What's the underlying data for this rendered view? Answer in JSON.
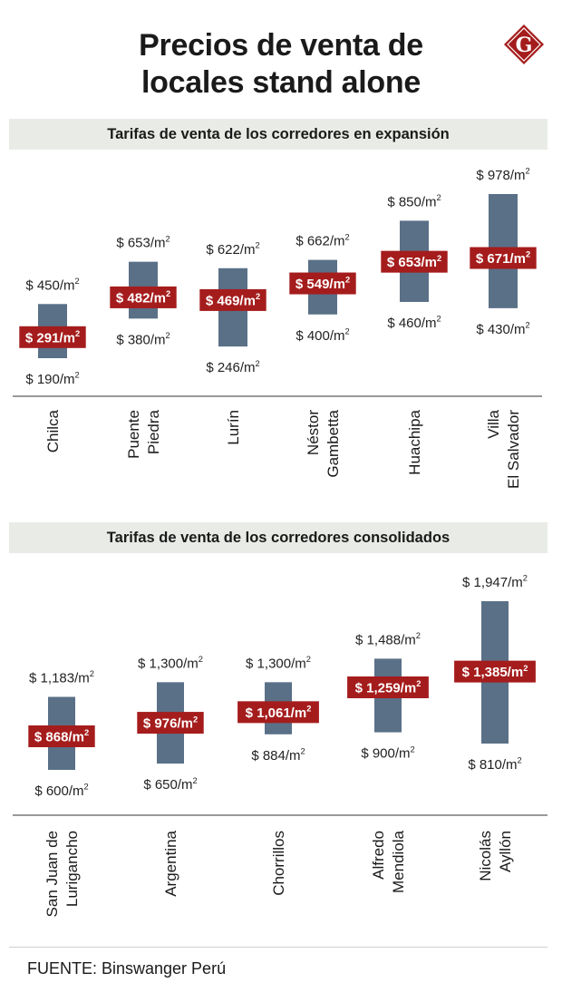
{
  "title_line1": "Precios de venta de",
  "title_line2": "locales stand alone",
  "logo_letter": "G",
  "source": "FUENTE: Binswanger Perú",
  "colors": {
    "bar": "#5a7087",
    "median": "#a51c1c",
    "header_bg": "#e9ece6"
  },
  "chart_data": [
    {
      "type": "range-bar",
      "title": "Tarifas de venta de los corredores en expansión",
      "unit": "$ /m²",
      "ylim": [
        190,
        978
      ],
      "categories": [
        [
          "Chilca"
        ],
        [
          "Puente",
          "Piedra"
        ],
        [
          "Lurín"
        ],
        [
          "Néstor",
          "Gambetta"
        ],
        [
          "Huachipa"
        ],
        [
          "Villa",
          "El Salvador"
        ]
      ],
      "min": [
        190,
        380,
        246,
        400,
        460,
        430
      ],
      "max": [
        450,
        653,
        622,
        662,
        850,
        978
      ],
      "median": [
        291,
        482,
        469,
        549,
        653,
        671
      ],
      "min_labels": [
        "$ 190/m",
        "$ 380/m",
        "$ 246/m",
        "$ 400/m",
        "$ 460/m",
        "$ 430/m"
      ],
      "max_labels": [
        "$ 450/m",
        "$ 653/m",
        "$ 622/m",
        "$ 662/m",
        "$ 850/m",
        "$ 978/m"
      ],
      "median_labels": [
        "$ 291/m",
        "$ 482/m",
        "$ 469/m",
        "$ 549/m",
        "$ 653/m",
        "$ 671/m"
      ],
      "superscript": "2"
    },
    {
      "type": "range-bar",
      "title": "Tarifas de venta de los corredores consolidados",
      "unit": "$ /m²",
      "ylim": [
        600,
        1947
      ],
      "categories": [
        [
          "San Juan de",
          "Lurigancho"
        ],
        [
          "Argentina"
        ],
        [
          "Chorrillos"
        ],
        [
          "Alfredo",
          "Mendiola"
        ],
        [
          "Nicolás",
          "Ayllón"
        ]
      ],
      "min": [
        600,
        650,
        884,
        900,
        810
      ],
      "max": [
        1183,
        1300,
        1300,
        1488,
        1947
      ],
      "median": [
        868,
        976,
        1061,
        1259,
        1385
      ],
      "min_labels": [
        "$ 600/m",
        "$ 650/m",
        "$ 884/m",
        "$ 900/m",
        "$ 810/m"
      ],
      "max_labels": [
        "$ 1,183/m",
        "$ 1,300/m",
        "$ 1,300/m",
        "$ 1,488/m",
        "$ 1,947/m"
      ],
      "median_labels": [
        "$ 868/m",
        "$ 976/m",
        "$ 1,061/m",
        "$ 1,259/m",
        "$ 1,385/m"
      ],
      "superscript": "2"
    }
  ]
}
